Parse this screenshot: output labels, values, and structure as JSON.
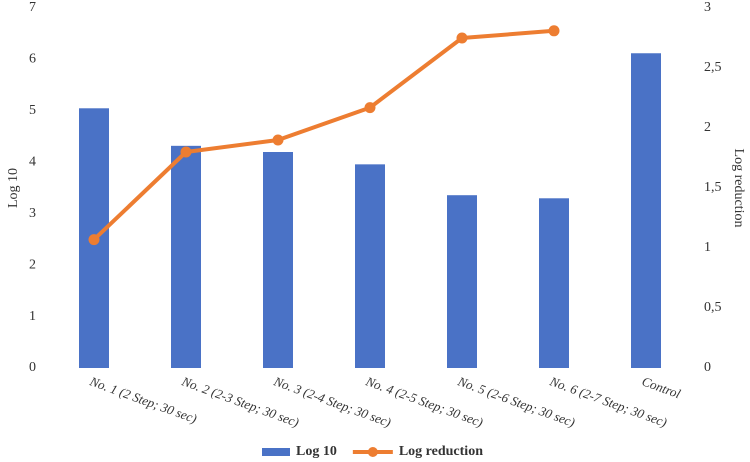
{
  "chart_data": {
    "type": "bar_line",
    "categories": [
      "No. 1 (2 Step; 30 sec)",
      "No. 2 (2-3  Step; 30 sec)",
      "No. 3 (2-4 Step; 30 sec)",
      "No. 4 (2-5 Step; 30 sec)",
      "No. 5 (2-6 Step; 30 sec)",
      "No. 6 (2-7 Step; 30 sec)",
      "Control"
    ],
    "series": [
      {
        "name": "Log 10",
        "type": "bar",
        "color": "#4a72c6",
        "values": [
          5.05,
          4.32,
          4.2,
          3.96,
          3.36,
          3.3,
          6.12
        ]
      },
      {
        "name": "Log reduction",
        "type": "line",
        "axis": "y2",
        "color": "#ed7d31",
        "values": [
          1.07,
          1.8,
          1.9,
          2.17,
          2.75,
          2.81,
          null
        ]
      }
    ],
    "ylabel": "Log 10",
    "y2label": "Log reduction",
    "ylim": [
      0,
      7
    ],
    "yticks": [
      0,
      1,
      2,
      3,
      4,
      5,
      6,
      7
    ],
    "y2lim": [
      0,
      3
    ],
    "y2ticks": [
      0,
      {
        "value": 0.5,
        "label": "0,5"
      },
      1,
      {
        "value": 1.5,
        "label": "1,5"
      },
      2,
      {
        "value": 2.5,
        "label": "2,5"
      },
      3
    ],
    "grid": false,
    "legend": "bottom"
  }
}
